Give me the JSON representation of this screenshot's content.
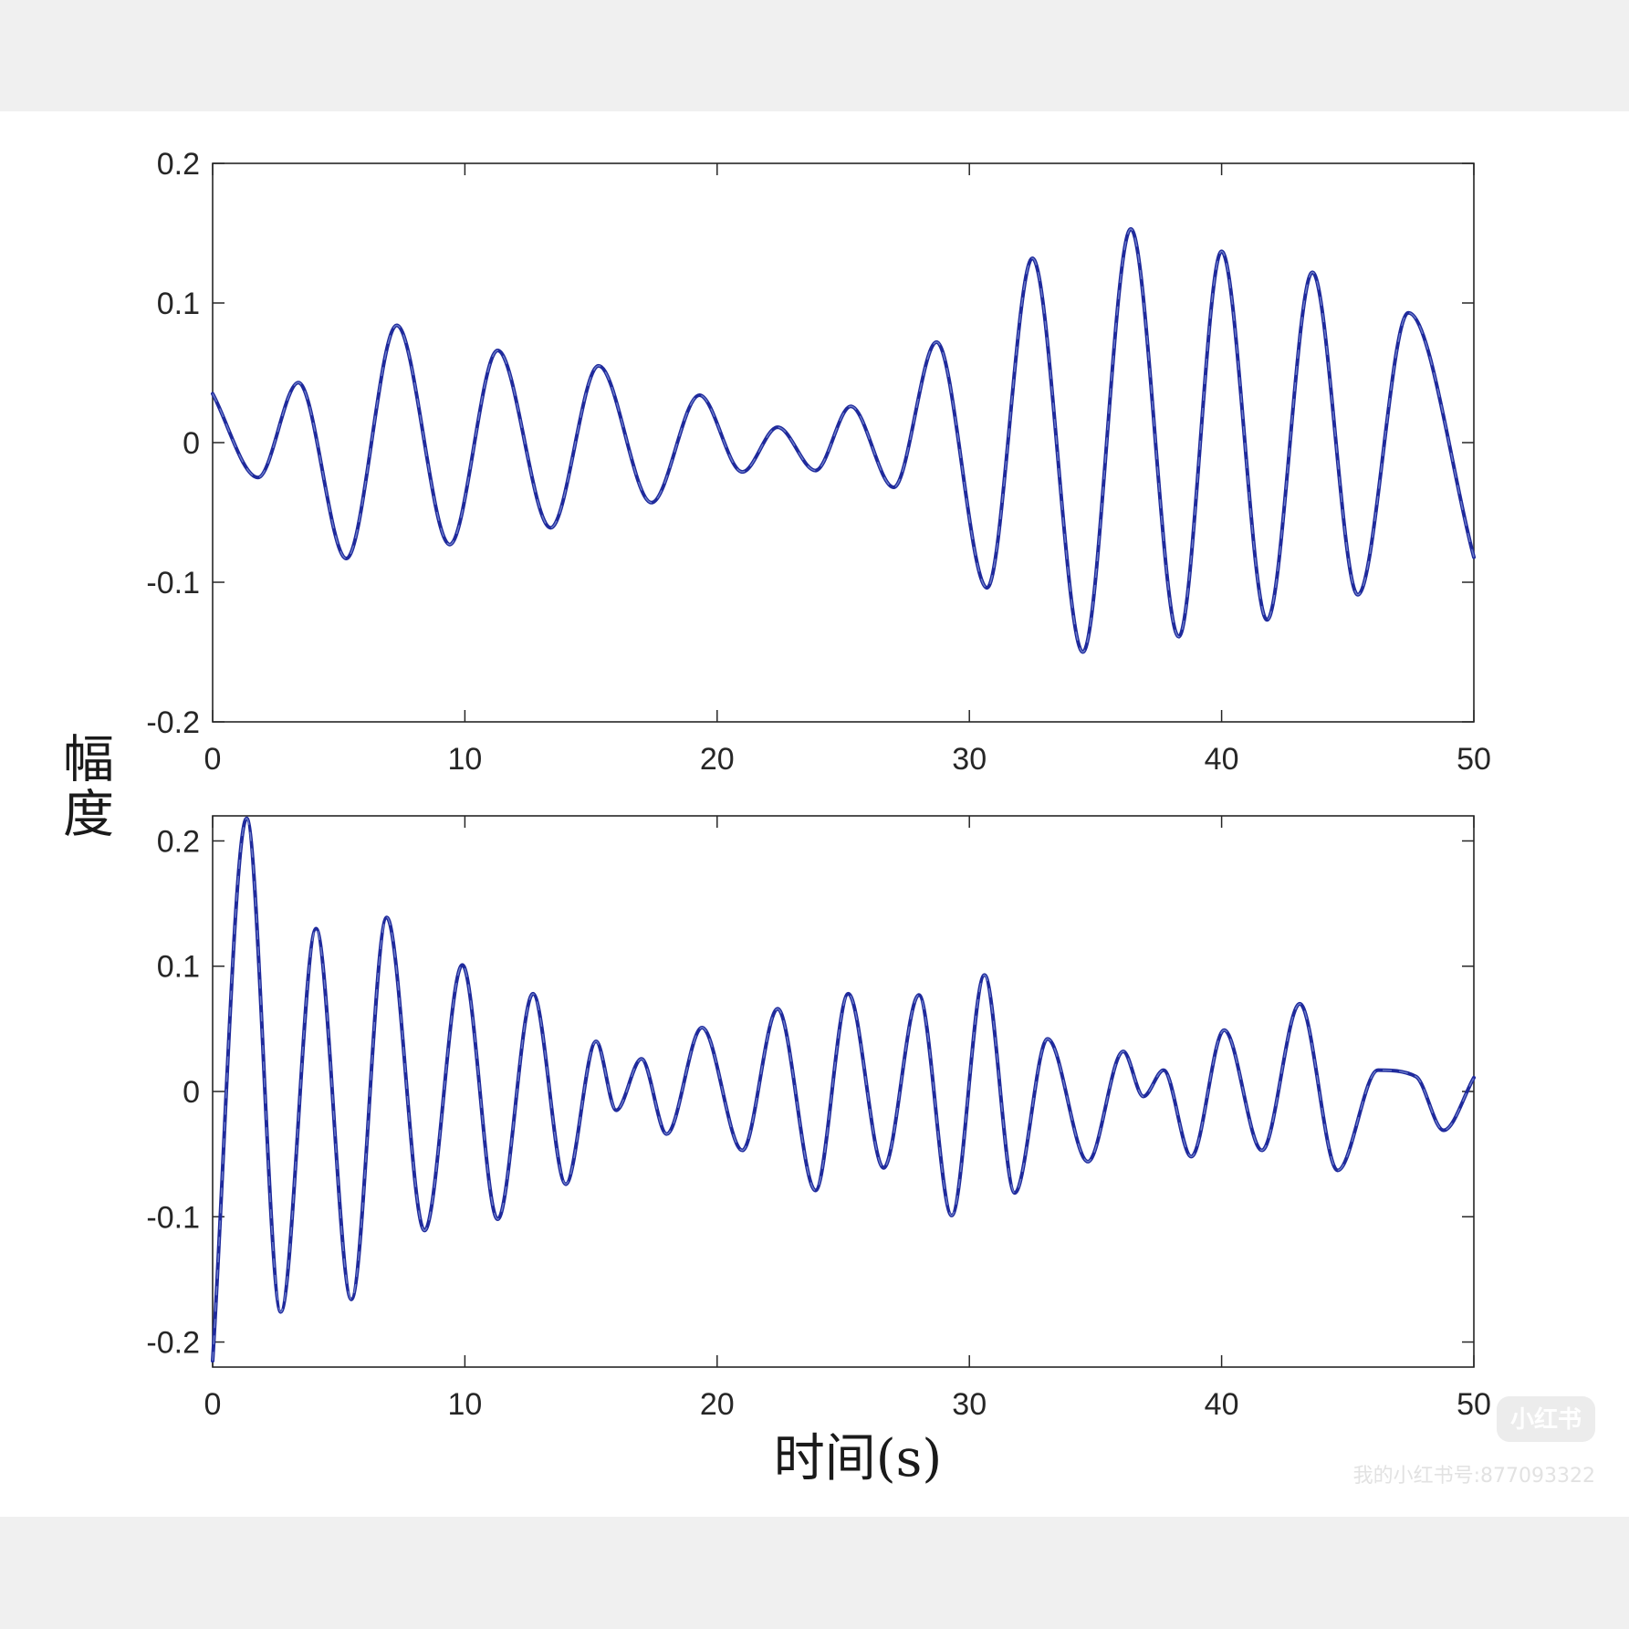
{
  "chart_data": [
    {
      "type": "line",
      "title": "",
      "xlabel": "",
      "ylabel": "",
      "xlim": [
        0,
        50
      ],
      "ylim": [
        -0.2,
        0.2
      ],
      "xticks": [
        "0",
        "10",
        "20",
        "30",
        "40",
        "50"
      ],
      "yticks": [
        "0.2",
        "0.1",
        "0",
        "-0.1",
        "-0.2"
      ],
      "grid": false,
      "line_color": "#1f2a9c",
      "series": [
        {
          "x": [
            0,
            1.8,
            3.4,
            5.3,
            7.3,
            9.4,
            11.3,
            13.4,
            15.3,
            17.4,
            19.3,
            21.0,
            22.4,
            23.9,
            25.3,
            27.0,
            28.7,
            30.7,
            32.5,
            34.5,
            36.4,
            38.3,
            40.0,
            41.8,
            43.6,
            45.4,
            47.4,
            50.0
          ],
          "y": [
            0.035,
            -0.025,
            0.043,
            -0.083,
            0.084,
            -0.073,
            0.066,
            -0.061,
            0.055,
            -0.043,
            0.034,
            -0.021,
            0.011,
            -0.02,
            0.026,
            -0.032,
            0.072,
            -0.104,
            0.132,
            -0.15,
            0.153,
            -0.139,
            0.137,
            -0.127,
            0.122,
            -0.109,
            0.093,
            -0.082
          ]
        }
      ]
    },
    {
      "type": "line",
      "title": "",
      "xlabel": "时间(s)",
      "ylabel": "",
      "xlim": [
        0,
        50
      ],
      "ylim": [
        -0.22,
        0.22
      ],
      "xticks": [
        "0",
        "10",
        "20",
        "30",
        "40",
        "50"
      ],
      "yticks": [
        "0.2",
        "0.1",
        "0",
        "-0.1",
        "-0.2"
      ],
      "grid": false,
      "line_color": "#1f2a9c",
      "series": [
        {
          "x": [
            0,
            1.35,
            2.7,
            4.1,
            5.5,
            6.9,
            8.4,
            9.9,
            11.3,
            12.7,
            14.0,
            15.2,
            16.0,
            17.0,
            18.0,
            19.4,
            21.0,
            22.4,
            23.9,
            25.2,
            26.6,
            28.0,
            29.3,
            30.6,
            31.8,
            33.1,
            34.7,
            36.1,
            36.9,
            37.7,
            38.8,
            40.1,
            41.6,
            43.1,
            44.6,
            46.2,
            47.7,
            48.8,
            50.0
          ],
          "y": [
            -0.215,
            0.218,
            -0.176,
            0.13,
            -0.166,
            0.139,
            -0.111,
            0.101,
            -0.102,
            0.078,
            -0.074,
            0.04,
            -0.015,
            0.026,
            -0.034,
            0.051,
            -0.047,
            0.066,
            -0.079,
            0.078,
            -0.061,
            0.077,
            -0.099,
            0.093,
            -0.081,
            0.042,
            -0.056,
            0.032,
            -0.004,
            0.017,
            -0.052,
            0.049,
            -0.047,
            0.07,
            -0.063,
            0.017,
            0.012,
            -0.031,
            0.011
          ]
        }
      ]
    }
  ],
  "ylabel_shared": "幅度",
  "watermark": {
    "badge": "小红书",
    "text": "我的小红书号:877093322"
  }
}
